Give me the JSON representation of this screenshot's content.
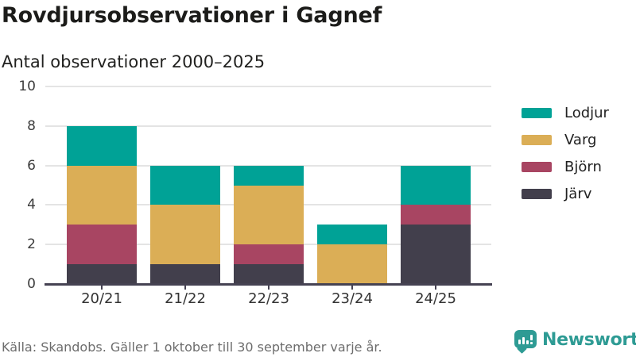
{
  "header": {
    "title": "Rovdjursobservationer i Gagnef",
    "subtitle": "Antal observationer 2000–2025"
  },
  "chart_data": {
    "type": "bar",
    "stacked": true,
    "title": "Rovdjursobservationer i Gagnef",
    "subtitle": "Antal observationer 2000–2025",
    "categories": [
      "20/21",
      "21/22",
      "22/23",
      "23/24",
      "24/25"
    ],
    "series": [
      {
        "name": "Lodjur",
        "color": "#00a296",
        "values": [
          2,
          2,
          1,
          1,
          2
        ]
      },
      {
        "name": "Varg",
        "color": "#dbae56",
        "values": [
          3,
          3,
          3,
          2,
          0
        ]
      },
      {
        "name": "Björn",
        "color": "#a84562",
        "values": [
          2,
          0,
          1,
          0,
          1
        ]
      },
      {
        "name": "Järv",
        "color": "#423f4c",
        "values": [
          1,
          1,
          1,
          0,
          3
        ]
      }
    ],
    "stack_order_bottom_to_top": [
      "Järv",
      "Björn",
      "Varg",
      "Lodjur"
    ],
    "totals": [
      8,
      6,
      6,
      3,
      6
    ],
    "ylim": [
      0,
      10
    ],
    "yticks": [
      0,
      2,
      4,
      6,
      8,
      10
    ],
    "grid": true,
    "legend_position": "right",
    "xlabel": "",
    "ylabel": ""
  },
  "footer": {
    "source": "Källa: Skandobs. Gäller 1 oktober till 30 september varje år.",
    "brand": "Newsworthy"
  },
  "colors": {
    "accent_teal": "#00a296",
    "brand_teal": "#2e9b94",
    "axis": "#454252",
    "gridline": "#e4e4e4",
    "text_dark": "#1c1c1a",
    "text_muted": "#6d6d6d"
  }
}
